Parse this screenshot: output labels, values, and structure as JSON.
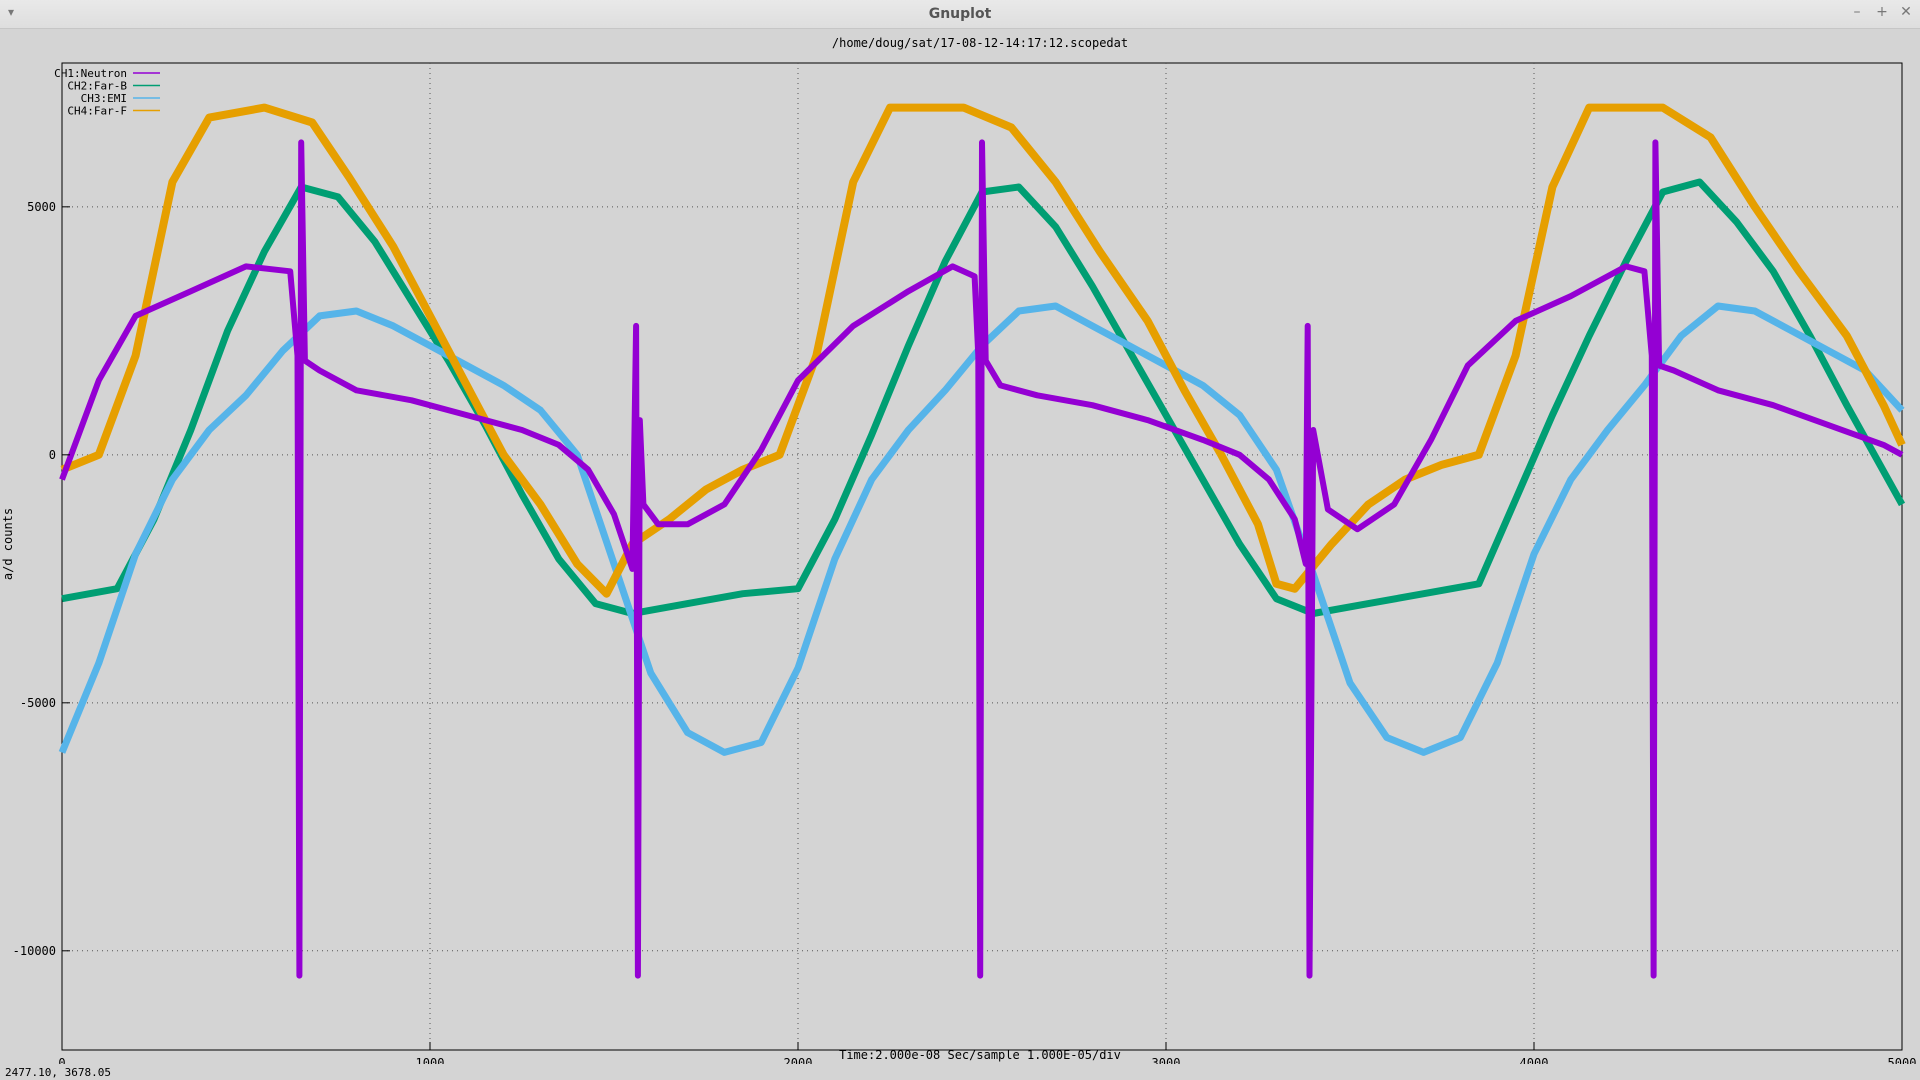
{
  "window": {
    "title": "Gnuplot",
    "controls": [
      "–",
      "+",
      "✕"
    ]
  },
  "status": {
    "mouse_coords": "2477.10,  3678.05"
  },
  "colors": {
    "ch1": "#9400d3",
    "ch2": "#009e73",
    "ch3": "#56b4e9",
    "ch4": "#e69f00",
    "background": "#d4d4d4"
  },
  "chart_data": {
    "type": "line",
    "title": "/home/doug/sat/17-08-12-14:17:12.scopedat",
    "xlabel": "Time:2.000e-08 Sec/sample 1.000E-05/div",
    "ylabel": "a/d counts",
    "xlim": [
      0,
      5000
    ],
    "ylim": [
      -12000,
      7900
    ],
    "xticks": [
      0,
      1000,
      2000,
      3000,
      4000,
      5000
    ],
    "yticks": [
      -10000,
      -5000,
      0,
      5000
    ],
    "grid": true,
    "legend_position": "top-left",
    "series": [
      {
        "name": "CH1:Neutron",
        "color": "#9400d3",
        "x": [
          0,
          100,
          200,
          350,
          500,
          620,
          640,
          645,
          650,
          660,
          700,
          800,
          950,
          1100,
          1250,
          1350,
          1430,
          1500,
          1550,
          1560,
          1565,
          1570,
          1580,
          1620,
          1700,
          1800,
          1900,
          2000,
          2150,
          2300,
          2420,
          2480,
          2490,
          2495,
          2500,
          2510,
          2550,
          2650,
          2800,
          2950,
          3100,
          3200,
          3280,
          3350,
          3380,
          3385,
          3390,
          3400,
          3440,
          3520,
          3620,
          3720,
          3820,
          3950,
          4100,
          4250,
          4300,
          4320,
          4325,
          4330,
          4340,
          4380,
          4500,
          4650,
          4800,
          4950,
          5000
        ],
        "y": [
          -500,
          1500,
          2800,
          3300,
          3800,
          3700,
          2000,
          -10500,
          6300,
          1900,
          1700,
          1300,
          1100,
          800,
          500,
          200,
          -300,
          -1200,
          -2300,
          2600,
          -10500,
          700,
          -1000,
          -1400,
          -1400,
          -1000,
          100,
          1500,
          2600,
          3300,
          3800,
          3600,
          2000,
          -10500,
          6300,
          1900,
          1400,
          1200,
          1000,
          700,
          300,
          0,
          -500,
          -1300,
          -2200,
          2600,
          -10500,
          500,
          -1100,
          -1500,
          -1000,
          300,
          1800,
          2700,
          3200,
          3800,
          3700,
          2000,
          -10500,
          6300,
          1800,
          1700,
          1300,
          1000,
          600,
          200,
          0
        ]
      },
      {
        "name": "CH2:Far-B",
        "color": "#009e73",
        "x": [
          0,
          150,
          250,
          350,
          450,
          550,
          650,
          750,
          850,
          950,
          1050,
          1150,
          1250,
          1350,
          1450,
          1550,
          1700,
          1850,
          2000,
          2100,
          2200,
          2300,
          2400,
          2500,
          2600,
          2700,
          2800,
          2900,
          3000,
          3100,
          3200,
          3300,
          3400,
          3550,
          3700,
          3850,
          3950,
          4050,
          4150,
          4250,
          4350,
          4450,
          4550,
          4650,
          4750,
          4850,
          5000
        ],
        "y": [
          -2900,
          -2700,
          -1300,
          500,
          2500,
          4100,
          5400,
          5200,
          4300,
          3100,
          1900,
          600,
          -800,
          -2100,
          -3000,
          -3200,
          -3000,
          -2800,
          -2700,
          -1300,
          400,
          2200,
          3900,
          5300,
          5400,
          4600,
          3400,
          2100,
          800,
          -500,
          -1800,
          -2900,
          -3200,
          -3000,
          -2800,
          -2600,
          -900,
          800,
          2400,
          3900,
          5300,
          5500,
          4700,
          3700,
          2400,
          1000,
          -1000
        ]
      },
      {
        "name": "CH3:EMI",
        "color": "#56b4e9",
        "x": [
          0,
          100,
          200,
          300,
          400,
          500,
          600,
          700,
          800,
          900,
          1000,
          1100,
          1200,
          1300,
          1400,
          1500,
          1600,
          1700,
          1800,
          1900,
          2000,
          2100,
          2200,
          2300,
          2400,
          2500,
          2600,
          2700,
          2800,
          2900,
          3000,
          3100,
          3200,
          3300,
          3400,
          3500,
          3600,
          3700,
          3800,
          3900,
          4000,
          4100,
          4200,
          4300,
          4400,
          4500,
          4600,
          4700,
          4800,
          4900,
          5000
        ],
        "y": [
          -6000,
          -4200,
          -2000,
          -500,
          500,
          1200,
          2100,
          2800,
          2900,
          2600,
          2200,
          1800,
          1400,
          900,
          0,
          -2200,
          -4400,
          -5600,
          -6000,
          -5800,
          -4300,
          -2100,
          -500,
          500,
          1300,
          2200,
          2900,
          3000,
          2600,
          2200,
          1800,
          1400,
          800,
          -300,
          -2400,
          -4600,
          -5700,
          -6000,
          -5700,
          -4200,
          -2000,
          -500,
          500,
          1400,
          2400,
          3000,
          2900,
          2500,
          2100,
          1700,
          900
        ]
      },
      {
        "name": "CH4:Far-F",
        "color": "#e69f00",
        "x": [
          0,
          100,
          200,
          300,
          400,
          550,
          680,
          780,
          900,
          1000,
          1100,
          1200,
          1300,
          1400,
          1480,
          1550,
          1650,
          1750,
          1850,
          1950,
          2050,
          2150,
          2250,
          2450,
          2580,
          2700,
          2820,
          2950,
          3050,
          3150,
          3250,
          3300,
          3350,
          3450,
          3550,
          3650,
          3750,
          3850,
          3950,
          4050,
          4150,
          4350,
          4480,
          4600,
          4720,
          4850,
          4950,
          5000
        ],
        "y": [
          -300,
          0,
          2000,
          5500,
          6800,
          7000,
          6700,
          5600,
          4200,
          2800,
          1400,
          0,
          -1000,
          -2200,
          -2800,
          -1800,
          -1300,
          -700,
          -300,
          0,
          2000,
          5500,
          7000,
          7000,
          6600,
          5500,
          4100,
          2700,
          1300,
          0,
          -1400,
          -2600,
          -2700,
          -1800,
          -1000,
          -500,
          -200,
          0,
          2000,
          5400,
          7000,
          7000,
          6400,
          5000,
          3700,
          2400,
          1000,
          200
        ]
      }
    ]
  }
}
